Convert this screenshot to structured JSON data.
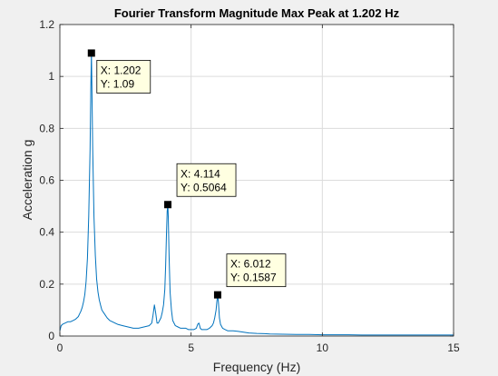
{
  "chart_data": {
    "type": "line",
    "title": "Fourier Transform Magnitude  Max Peak at    1.202 Hz",
    "xlabel": "Frequency (Hz)",
    "ylabel": "Acceleration g",
    "xlim": [
      0,
      15
    ],
    "ylim": [
      0,
      1.2
    ],
    "xticks": [
      "0",
      "5",
      "10",
      "15"
    ],
    "yticks": [
      "0",
      "0.2",
      "0.4",
      "0.6",
      "0.8",
      "1",
      "1.2"
    ],
    "grid": true,
    "line_color": "#0072bd",
    "series": [
      {
        "x": [
          0,
          0.05,
          0.1,
          0.2,
          0.3,
          0.4,
          0.5,
          0.6,
          0.7,
          0.75,
          0.8,
          0.85,
          0.9,
          0.95,
          1.0,
          1.05,
          1.1,
          1.15,
          1.18,
          1.202,
          1.22,
          1.25,
          1.3,
          1.35,
          1.4,
          1.45,
          1.5,
          1.55,
          1.6,
          1.7,
          1.8,
          1.9,
          2.0,
          2.2,
          2.4,
          2.6,
          2.8,
          3.0,
          3.2,
          3.4,
          3.5,
          3.55,
          3.6,
          3.65,
          3.7,
          3.75,
          3.8,
          3.85,
          3.9,
          3.95,
          4.0,
          4.03,
          4.06,
          4.09,
          4.114,
          4.13,
          4.16,
          4.2,
          4.25,
          4.3,
          4.4,
          4.5,
          4.6,
          4.7,
          4.8,
          4.9,
          5.0,
          5.1,
          5.2,
          5.25,
          5.3,
          5.35,
          5.4,
          5.5,
          5.6,
          5.7,
          5.8,
          5.85,
          5.9,
          5.95,
          5.98,
          6.012,
          6.04,
          6.08,
          6.12,
          6.2,
          6.3,
          6.4,
          6.6,
          6.8,
          7.0,
          7.2,
          7.5,
          7.8,
          8.0,
          8.5,
          9.0,
          9.5,
          10.0,
          10.5,
          11.0,
          11.5,
          12.0,
          12.5,
          13.0,
          13.5,
          14.0,
          14.5,
          15.0
        ],
        "y": [
          0.02,
          0.04,
          0.045,
          0.05,
          0.055,
          0.055,
          0.06,
          0.065,
          0.075,
          0.085,
          0.095,
          0.11,
          0.13,
          0.16,
          0.21,
          0.3,
          0.46,
          0.72,
          0.95,
          1.09,
          0.96,
          0.72,
          0.46,
          0.31,
          0.22,
          0.17,
          0.14,
          0.12,
          0.1,
          0.085,
          0.07,
          0.06,
          0.055,
          0.045,
          0.04,
          0.035,
          0.03,
          0.03,
          0.035,
          0.04,
          0.05,
          0.08,
          0.12,
          0.09,
          0.05,
          0.05,
          0.06,
          0.07,
          0.09,
          0.12,
          0.18,
          0.27,
          0.39,
          0.48,
          0.5064,
          0.46,
          0.31,
          0.17,
          0.1,
          0.06,
          0.04,
          0.035,
          0.03,
          0.03,
          0.03,
          0.025,
          0.025,
          0.025,
          0.03,
          0.045,
          0.05,
          0.03,
          0.025,
          0.025,
          0.025,
          0.03,
          0.04,
          0.05,
          0.07,
          0.1,
          0.13,
          0.1587,
          0.13,
          0.07,
          0.045,
          0.03,
          0.025,
          0.02,
          0.02,
          0.018,
          0.015,
          0.012,
          0.01,
          0.009,
          0.008,
          0.007,
          0.006,
          0.006,
          0.005,
          0.005,
          0.005,
          0.004,
          0.004,
          0.004,
          0.004,
          0.004,
          0.004,
          0.004,
          0.004
        ]
      }
    ],
    "datatips": [
      {
        "x": 1.202,
        "y": 1.09,
        "x_text": "X: 1.202",
        "y_text": "Y: 1.09"
      },
      {
        "x": 4.114,
        "y": 0.5064,
        "x_text": "X: 4.114",
        "y_text": "Y: 0.5064"
      },
      {
        "x": 6.012,
        "y": 0.1587,
        "x_text": "X: 6.012",
        "y_text": "Y: 0.1587"
      }
    ]
  }
}
